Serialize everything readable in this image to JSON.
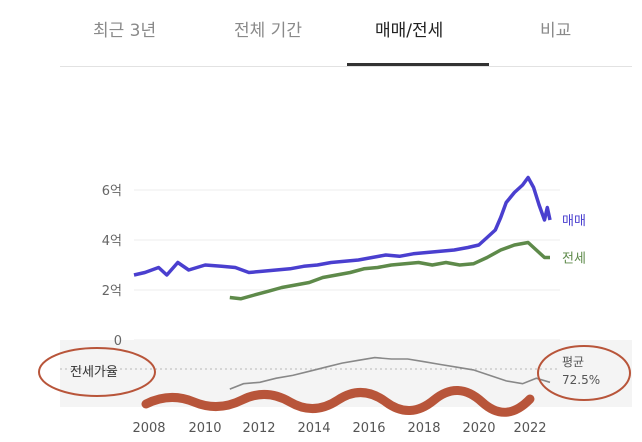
{
  "tabs": [
    {
      "label": "최근 3년",
      "active": false
    },
    {
      "label": "전체 기간",
      "active": false
    },
    {
      "label": "매매/전세",
      "active": true
    },
    {
      "label": "비교",
      "active": false
    }
  ],
  "chart_data": {
    "type": "line",
    "x_ticks": [
      "2008",
      "2010",
      "2012",
      "2014",
      "2016",
      "2018",
      "2020",
      "2022"
    ],
    "y_ticks": [
      "0",
      "2억",
      "4억",
      "6억"
    ],
    "ylim": [
      0,
      6.6
    ],
    "xlim": [
      2007.6,
      2022.8
    ],
    "grid": true,
    "series": [
      {
        "name": "매매",
        "color": "#4a3fcf",
        "x": [
          2007.6,
          2008.0,
          2008.5,
          2008.8,
          2009.2,
          2009.6,
          2010.2,
          2010.8,
          2011.3,
          2011.8,
          2012.3,
          2012.8,
          2013.3,
          2013.8,
          2014.3,
          2014.8,
          2015.3,
          2015.8,
          2016.3,
          2016.8,
          2017.3,
          2017.8,
          2018.3,
          2018.8,
          2019.3,
          2019.8,
          2020.2,
          2020.5,
          2020.8,
          2021.0,
          2021.2,
          2021.5,
          2021.8,
          2022.0,
          2022.2,
          2022.4,
          2022.6,
          2022.7,
          2022.8
        ],
        "values": [
          2.6,
          2.7,
          2.9,
          2.6,
          3.1,
          2.8,
          3.0,
          2.95,
          2.9,
          2.7,
          2.75,
          2.8,
          2.85,
          2.95,
          3.0,
          3.1,
          3.15,
          3.2,
          3.3,
          3.4,
          3.35,
          3.45,
          3.5,
          3.55,
          3.6,
          3.7,
          3.8,
          4.1,
          4.4,
          4.9,
          5.5,
          5.9,
          6.2,
          6.5,
          6.1,
          5.4,
          4.8,
          5.3,
          4.8
        ]
      },
      {
        "name": "전세",
        "color": "#5e8a4a",
        "x": [
          2011.1,
          2011.5,
          2012.0,
          2012.5,
          2013.0,
          2013.5,
          2014.0,
          2014.5,
          2015.0,
          2015.5,
          2016.0,
          2016.5,
          2017.0,
          2017.5,
          2018.0,
          2018.5,
          2019.0,
          2019.5,
          2020.0,
          2020.5,
          2021.0,
          2021.5,
          2022.0,
          2022.3,
          2022.6,
          2022.8
        ],
        "values": [
          1.7,
          1.65,
          1.8,
          1.95,
          2.1,
          2.2,
          2.3,
          2.5,
          2.6,
          2.7,
          2.85,
          2.9,
          3.0,
          3.05,
          3.1,
          3.0,
          3.1,
          3.0,
          3.05,
          3.3,
          3.6,
          3.8,
          3.9,
          3.6,
          3.3,
          3.3
        ]
      }
    ],
    "ratio": {
      "label": "전세가율",
      "avg_label": "평균",
      "avg_value": "72.5%",
      "x": [
        2011.1,
        2011.6,
        2012.2,
        2012.8,
        2013.4,
        2014.0,
        2014.6,
        2015.2,
        2015.8,
        2016.4,
        2017.0,
        2017.6,
        2018.2,
        2018.8,
        2019.4,
        2020.0,
        2020.6,
        2021.2,
        2021.8,
        2022.3,
        2022.8
      ],
      "values": [
        60,
        64,
        65,
        68,
        70,
        73,
        76,
        79,
        81,
        83,
        82,
        82,
        80,
        78,
        76,
        74,
        70,
        66,
        64,
        68,
        65
      ],
      "ylim": [
        55,
        90
      ]
    }
  }
}
